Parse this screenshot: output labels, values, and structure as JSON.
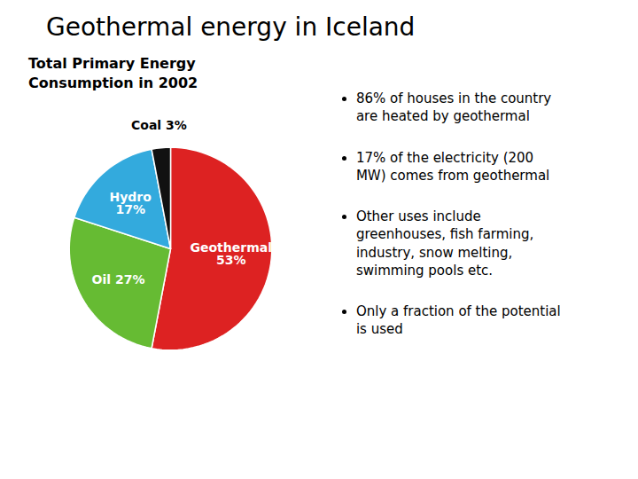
{
  "chart_data": {
    "type": "pie",
    "title": "Geothermal energy in Iceland",
    "subtitle": "Total Primary Energy\nConsumption in 2002",
    "categories": [
      "Geothermal",
      "Oil",
      "Hydro",
      "Coal"
    ],
    "values": [
      53,
      27,
      17,
      3
    ],
    "value_labels": [
      "Geothermal\n53%",
      "Oil 27%",
      "Hydro\n17%",
      "Coal 3%"
    ],
    "colors": [
      "#dd2222",
      "#66bb33",
      "#33aadd",
      "#111111"
    ],
    "data_labels": true,
    "annotations": [
      "86% of houses in the country\nare heated by geothermal",
      "17% of the electricity (200\nMW) comes from geothermal",
      "Other uses include\ngreenhouses, fish farming,\nindustry, snow melting,\nswimming pools etc.",
      "Only a fraction of the potential\nis used"
    ]
  }
}
